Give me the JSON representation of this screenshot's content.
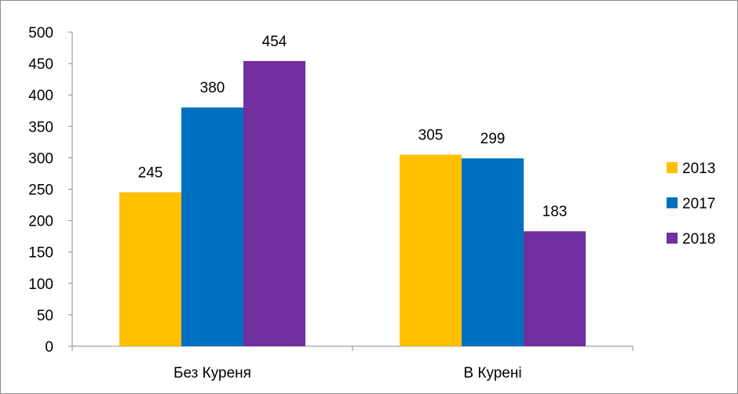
{
  "chart_data": {
    "type": "bar",
    "title": "",
    "xlabel": "",
    "ylabel": "",
    "categories": [
      "Без Куреня",
      "В Курені"
    ],
    "series": [
      {
        "name": "2013",
        "values": [
          245,
          305
        ],
        "color": "#FFC000"
      },
      {
        "name": "2017",
        "values": [
          380,
          299
        ],
        "color": "#0070C0"
      },
      {
        "name": "2018",
        "values": [
          454,
          183
        ],
        "color": "#7030A0"
      }
    ],
    "ylim": [
      0,
      500
    ],
    "yticks": [
      "0",
      "50",
      "100",
      "150",
      "200",
      "250",
      "300",
      "350",
      "400",
      "450",
      "500"
    ],
    "grid": false,
    "legend_position": "right",
    "data_labels": true
  }
}
